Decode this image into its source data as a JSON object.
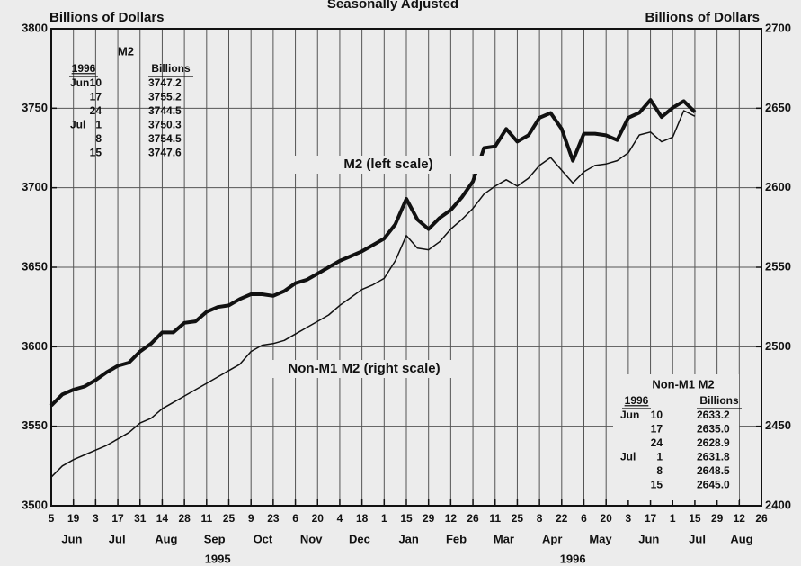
{
  "chart_data": {
    "type": "line",
    "subtitle": "Seasonally Adjusted",
    "ylabel": "Billions of Dollars",
    "y2label": "Billions of Dollars",
    "x": [
      "1995-06-05",
      "1995-06-12",
      "1995-06-19",
      "1995-06-26",
      "1995-07-03",
      "1995-07-10",
      "1995-07-17",
      "1995-07-24",
      "1995-07-31",
      "1995-08-07",
      "1995-08-14",
      "1995-08-21",
      "1995-08-28",
      "1995-09-04",
      "1995-09-11",
      "1995-09-18",
      "1995-09-25",
      "1995-10-02",
      "1995-10-09",
      "1995-10-16",
      "1995-10-23",
      "1995-10-30",
      "1995-11-06",
      "1995-11-13",
      "1995-11-20",
      "1995-11-27",
      "1995-12-04",
      "1995-12-11",
      "1995-12-18",
      "1995-12-25",
      "1996-01-01",
      "1996-01-08",
      "1996-01-15",
      "1996-01-22",
      "1996-01-29",
      "1996-02-05",
      "1996-02-12",
      "1996-02-19",
      "1996-02-26",
      "1996-03-04",
      "1996-03-11",
      "1996-03-18",
      "1996-03-25",
      "1996-04-01",
      "1996-04-08",
      "1996-04-15",
      "1996-04-22",
      "1996-04-29",
      "1996-05-06",
      "1996-05-13",
      "1996-05-20",
      "1996-05-27",
      "1996-06-03",
      "1996-06-10",
      "1996-06-17",
      "1996-06-24",
      "1996-07-01",
      "1996-07-08",
      "1996-07-15"
    ],
    "series": [
      {
        "name": "M2 (left scale)",
        "color": "#111111",
        "width": 4,
        "values": [
          3563,
          3570,
          3573,
          3575,
          3579,
          3584,
          3588,
          3590,
          3597,
          3602,
          3609,
          3609,
          3615,
          3616,
          3622,
          3625,
          3626,
          3630,
          3633,
          3633,
          3632,
          3635,
          3640,
          3642,
          3646,
          3650,
          3654,
          3657,
          3660,
          3664,
          3668,
          3677,
          3693,
          3680,
          3674,
          3681,
          3686,
          3694,
          3704,
          3725,
          3726,
          3737,
          3729,
          3733,
          3744,
          3747,
          3737,
          3717,
          3734,
          3734,
          3733,
          3730,
          3744,
          3747.2,
          3755.2,
          3744.5,
          3750.3,
          3754.5,
          3747.6
        ]
      },
      {
        "name": "Non-M1 M2 (right scale)",
        "color": "#111111",
        "width": 1.5,
        "axis": "y2",
        "values": [
          2418,
          2425,
          2429,
          2432,
          2435,
          2438,
          2442,
          2446,
          2452,
          2455,
          2461,
          2465,
          2469,
          2473,
          2477,
          2481,
          2485,
          2489,
          2497,
          2501,
          2502,
          2504,
          2508,
          2512,
          2516,
          2520,
          2526,
          2531,
          2536,
          2539,
          2543,
          2554,
          2570,
          2562,
          2561,
          2566,
          2574,
          2580,
          2587,
          2596,
          2601,
          2605,
          2601,
          2606,
          2614,
          2619,
          2611,
          2603,
          2610,
          2614,
          2615,
          2617,
          2622,
          2633.2,
          2635.0,
          2628.9,
          2631.8,
          2648.5,
          2645.0
        ]
      }
    ],
    "xlim": [
      "1995-06-05",
      "1996-08-26"
    ],
    "xticks": [
      {
        "value": "1995-06-05",
        "label": "5"
      },
      {
        "value": "1995-06-19",
        "label": "19"
      },
      {
        "value": "1995-07-03",
        "label": "3"
      },
      {
        "value": "1995-07-17",
        "label": "17"
      },
      {
        "value": "1995-07-31",
        "label": "31"
      },
      {
        "value": "1995-08-14",
        "label": "14"
      },
      {
        "value": "1995-08-28",
        "label": "28"
      },
      {
        "value": "1995-09-11",
        "label": "11"
      },
      {
        "value": "1995-09-25",
        "label": "25"
      },
      {
        "value": "1995-10-09",
        "label": "9"
      },
      {
        "value": "1995-10-23",
        "label": "23"
      },
      {
        "value": "1995-11-06",
        "label": "6"
      },
      {
        "value": "1995-11-20",
        "label": "20"
      },
      {
        "value": "1995-12-04",
        "label": "4"
      },
      {
        "value": "1995-12-18",
        "label": "18"
      },
      {
        "value": "1996-01-01",
        "label": "1"
      },
      {
        "value": "1996-01-15",
        "label": "15"
      },
      {
        "value": "1996-01-29",
        "label": "29"
      },
      {
        "value": "1996-02-12",
        "label": "12"
      },
      {
        "value": "1996-02-26",
        "label": "26"
      },
      {
        "value": "1996-03-11",
        "label": "11"
      },
      {
        "value": "1996-03-25",
        "label": "25"
      },
      {
        "value": "1996-04-08",
        "label": "8"
      },
      {
        "value": "1996-04-22",
        "label": "22"
      },
      {
        "value": "1996-05-06",
        "label": "6"
      },
      {
        "value": "1996-05-20",
        "label": "20"
      },
      {
        "value": "1996-06-03",
        "label": "3"
      },
      {
        "value": "1996-06-17",
        "label": "17"
      },
      {
        "value": "1996-07-01",
        "label": "1"
      },
      {
        "value": "1996-07-15",
        "label": "15"
      },
      {
        "value": "1996-07-29",
        "label": "29"
      },
      {
        "value": "1996-08-12",
        "label": "12"
      },
      {
        "value": "1996-08-26",
        "label": "26"
      }
    ],
    "month_labels": [
      {
        "value": "1995-06",
        "label": "Jun"
      },
      {
        "value": "1995-07",
        "label": "Jul"
      },
      {
        "value": "1995-08",
        "label": "Aug"
      },
      {
        "value": "1995-09",
        "label": "Sep"
      },
      {
        "value": "1995-10",
        "label": "Oct"
      },
      {
        "value": "1995-11",
        "label": "Nov"
      },
      {
        "value": "1995-12",
        "label": "Dec"
      },
      {
        "value": "1996-01",
        "label": "Jan"
      },
      {
        "value": "1996-02",
        "label": "Feb"
      },
      {
        "value": "1996-03",
        "label": "Mar"
      },
      {
        "value": "1996-04",
        "label": "Apr"
      },
      {
        "value": "1996-05",
        "label": "May"
      },
      {
        "value": "1996-06",
        "label": "Jun"
      },
      {
        "value": "1996-07",
        "label": "Jul"
      },
      {
        "value": "1996-08",
        "label": "Aug"
      }
    ],
    "year_labels": [
      {
        "value": "1995",
        "label": "1995"
      },
      {
        "value": "1996",
        "label": "1996"
      }
    ],
    "ylim": [
      3500,
      3800
    ],
    "yticks": [
      3500,
      3550,
      3600,
      3650,
      3700,
      3750,
      3800
    ],
    "y2lim": [
      2400,
      2700
    ],
    "y2ticks": [
      2400,
      2450,
      2500,
      2550,
      2600,
      2650,
      2700
    ],
    "grid": true,
    "tables": [
      {
        "title": "M2",
        "year": "1996",
        "unit": "Billions",
        "rows": [
          {
            "month": "Jun",
            "day": "10",
            "value": "3747.2"
          },
          {
            "day": "17",
            "value": "3755.2"
          },
          {
            "day": "24",
            "value": "3744.5"
          },
          {
            "month": "Jul",
            "day": "1",
            "value": "3750.3"
          },
          {
            "day": "8",
            "value": "3754.5"
          },
          {
            "day": "15",
            "value": "3747.6"
          }
        ]
      },
      {
        "title": "Non-M1 M2",
        "year": "1996",
        "unit": "Billions",
        "rows": [
          {
            "month": "Jun",
            "day": "10",
            "value": "2633.2"
          },
          {
            "day": "17",
            "value": "2635.0"
          },
          {
            "day": "24",
            "value": "2628.9"
          },
          {
            "month": "Jul",
            "day": "1",
            "value": "2631.8"
          },
          {
            "day": "8",
            "value": "2648.5"
          },
          {
            "day": "15",
            "value": "2645.0"
          }
        ]
      }
    ]
  }
}
